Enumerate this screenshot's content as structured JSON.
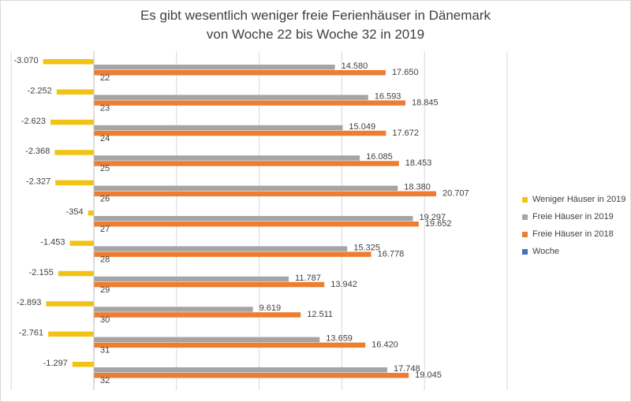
{
  "chart_data": {
    "type": "bar",
    "orientation": "horizontal",
    "title_lines": [
      "Es gibt wesentlich weniger freie Ferienhäuser in Dänemark",
      "von Woche 22 bis Woche 32 in 2019"
    ],
    "categories": [
      "22",
      "23",
      "24",
      "25",
      "26",
      "27",
      "28",
      "29",
      "30",
      "31",
      "32"
    ],
    "series": [
      {
        "name": "Weniger Häuser in 2019",
        "color": "#f2c314",
        "values": [
          -3070,
          -2252,
          -2623,
          -2368,
          -2327,
          -354,
          -1453,
          -2155,
          -2893,
          -2761,
          -1297
        ],
        "labels": [
          "-3.070",
          "-2.252",
          "-2.623",
          "-2.368",
          "-2.327",
          "-354",
          "-1.453",
          "-2.155",
          "-2.893",
          "-2.761",
          "-1.297"
        ]
      },
      {
        "name": "Freie Häuser in 2019",
        "color": "#a5a5a5",
        "values": [
          14580,
          16593,
          15049,
          16085,
          18380,
          19297,
          15325,
          11787,
          9619,
          13659,
          17748
        ],
        "labels": [
          "14.580",
          "16.593",
          "15.049",
          "16.085",
          "18.380",
          "19.297",
          "15.325",
          "11.787",
          "9.619",
          "13.659",
          "17.748"
        ]
      },
      {
        "name": "Freie Häuser in 2018",
        "color": "#ed7d31",
        "values": [
          17650,
          18845,
          17672,
          18453,
          20707,
          19652,
          16778,
          13942,
          12511,
          16420,
          19045
        ],
        "labels": [
          "17.650",
          "18.845",
          "17.672",
          "18.453",
          "20.707",
          "19.652",
          "16.778",
          "13.942",
          "12.511",
          "16.420",
          "19.045"
        ]
      },
      {
        "name": "Woche",
        "color": "#4472c4",
        "values": [
          22,
          23,
          24,
          25,
          26,
          27,
          28,
          29,
          30,
          31,
          32
        ],
        "labels": [
          "22",
          "23",
          "24",
          "25",
          "26",
          "27",
          "28",
          "29",
          "30",
          "31",
          "32"
        ]
      }
    ],
    "xlim": [
      -5000,
      25000
    ],
    "grid": true,
    "legend_position": "right"
  }
}
